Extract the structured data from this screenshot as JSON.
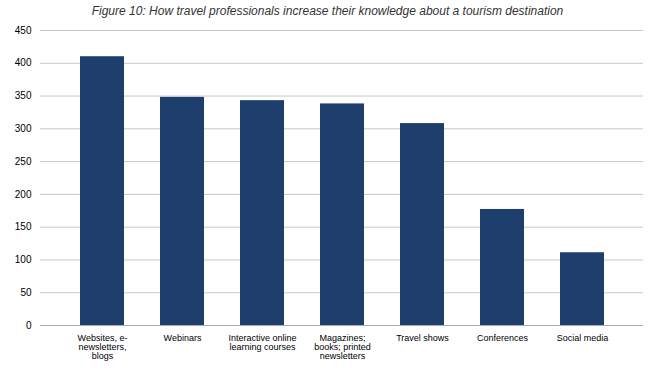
{
  "chart_data": {
    "type": "bar",
    "title": "Figure 10: How travel professionals increase their knowledge about a tourism destination",
    "categories": [
      "Websites, e-\nnewsletters,\nblogs",
      "Webinars",
      "Interactive online\nlearning courses",
      "Magazines;\nbooks; printed\nnewsletters",
      "Travel shows",
      "Conferences",
      "Social media"
    ],
    "values": [
      410,
      348,
      343,
      338,
      308,
      177,
      111
    ],
    "color": "#1e3f6e",
    "ylim": [
      0,
      450
    ],
    "yticks": [
      0,
      50,
      100,
      150,
      200,
      250,
      300,
      350,
      400,
      450
    ],
    "grid": true
  }
}
